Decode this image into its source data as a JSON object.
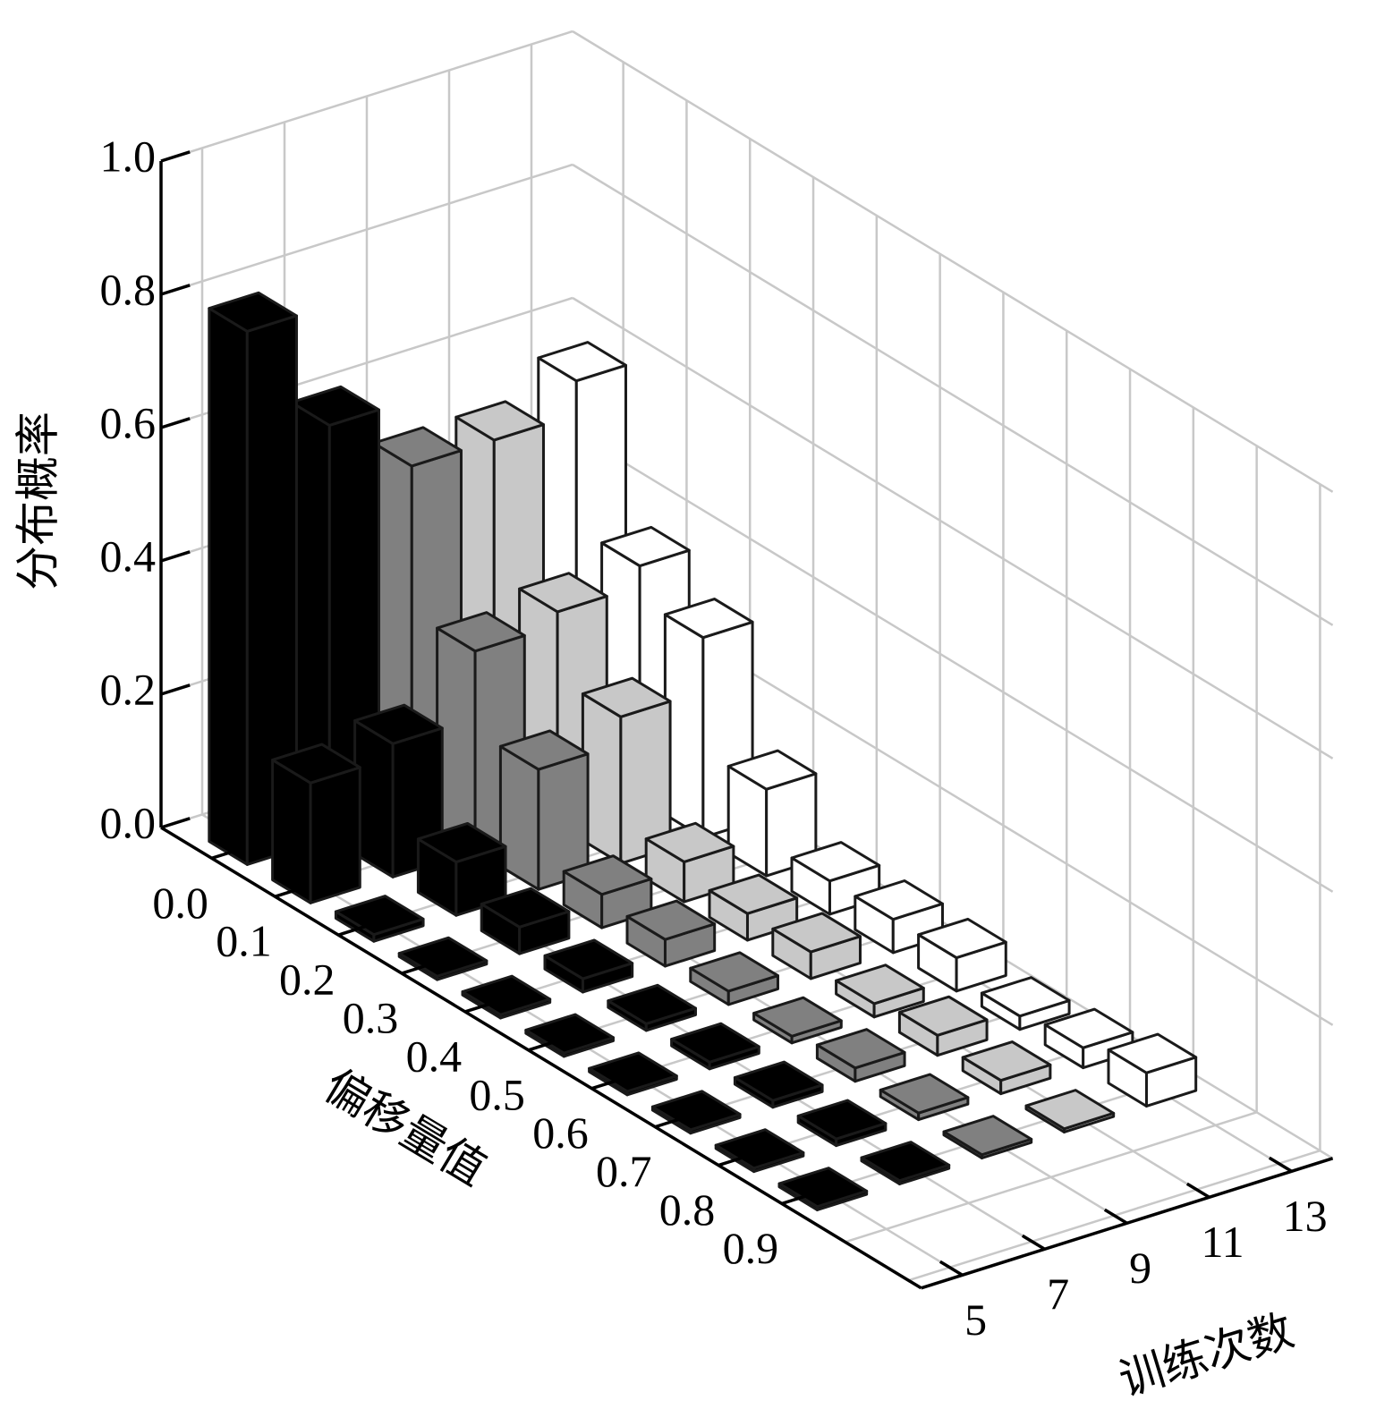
{
  "chart_data": {
    "type": "bar3d",
    "xlabel": "偏移量值",
    "ylabel": "训练次数",
    "zlabel": "分布概率",
    "categories": [
      "0.0",
      "0.1",
      "0.2",
      "0.3",
      "0.4",
      "0.5",
      "0.6",
      "0.7",
      "0.8",
      "0.9"
    ],
    "series": [
      {
        "name": "5",
        "color": "#000000",
        "values": [
          0.8,
          0.18,
          0.01,
          0.005,
          0.005,
          0.005,
          0.005,
          0.005,
          0.005,
          0.005
        ]
      },
      {
        "name": "7",
        "color": "#000000",
        "values": [
          0.62,
          0.2,
          0.08,
          0.04,
          0.02,
          0.01,
          0.01,
          0.01,
          0.01,
          0.005
        ]
      },
      {
        "name": "9",
        "color": "#808080",
        "values": [
          0.52,
          0.3,
          0.18,
          0.05,
          0.04,
          0.02,
          0.01,
          0.02,
          0.01,
          0.005
        ]
      },
      {
        "name": "11",
        "color": "#c8c8c8",
        "values": [
          0.52,
          0.32,
          0.22,
          0.06,
          0.04,
          0.04,
          0.02,
          0.03,
          0.02,
          0.005
        ]
      },
      {
        "name": "13",
        "color": "#ffffff",
        "values": [
          0.57,
          0.35,
          0.3,
          0.13,
          0.05,
          0.05,
          0.05,
          0.02,
          0.03,
          0.05
        ]
      }
    ],
    "zlim": [
      0,
      1
    ],
    "zticks": [
      {
        "value": 0,
        "label": "0.0"
      },
      {
        "value": 0.2,
        "label": "0.2"
      },
      {
        "value": 0.4,
        "label": "0.4"
      },
      {
        "value": 0.6,
        "label": "0.6"
      },
      {
        "value": 0.8,
        "label": "0.8"
      },
      {
        "value": 1,
        "label": "1.0"
      }
    ],
    "grid": true
  }
}
